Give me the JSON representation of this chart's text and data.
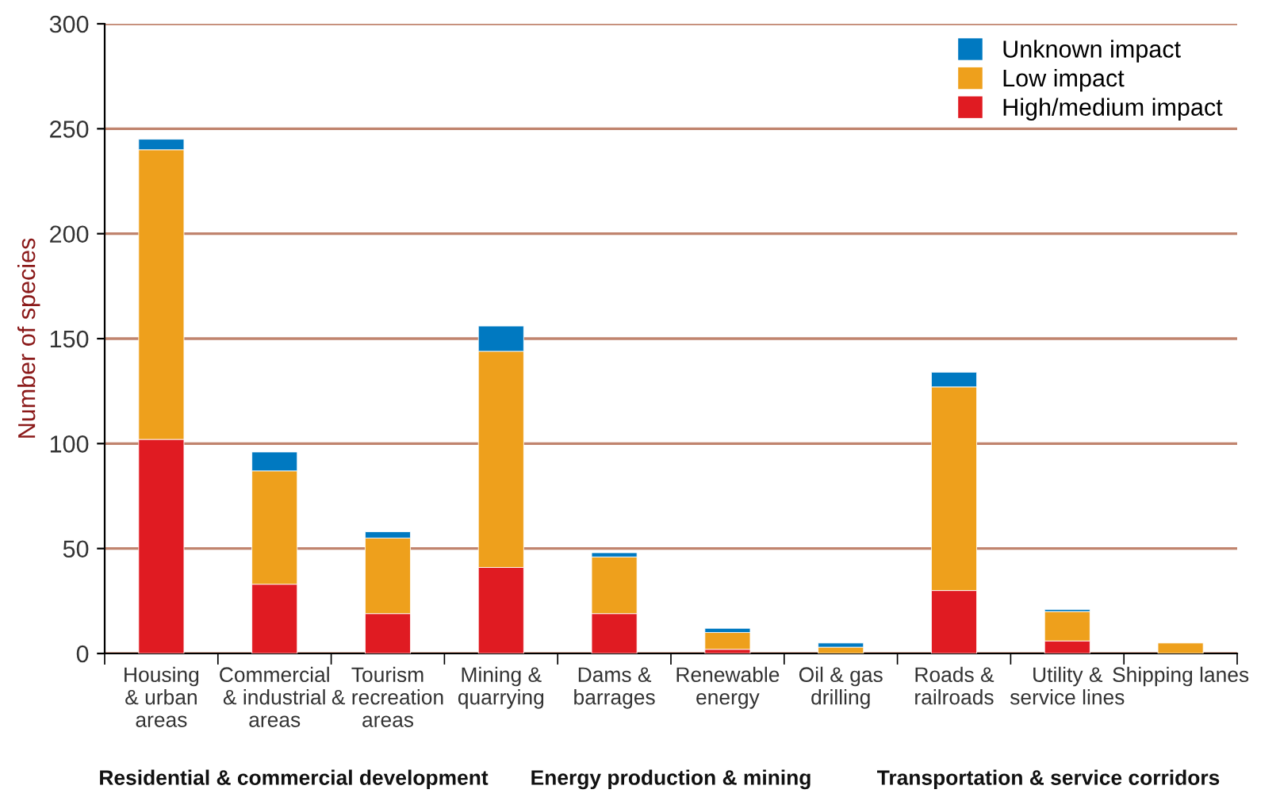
{
  "chart_data": {
    "type": "bar",
    "stacked": true,
    "ylabel": "Number of species",
    "categories": [
      "Housing\n& urban\nareas",
      "Commercial\n& industrial\nareas",
      "Tourism\n& recreation\nareas",
      "Mining &\nquarrying",
      "Dams &\nbarrages",
      "Renewable\nenergy",
      "Oil & gas\ndrilling",
      "Roads &\nrailroads",
      "Utility &\nservice lines",
      "Shipping lanes"
    ],
    "series": [
      {
        "name": "High/medium impact",
        "color": "#e01b22",
        "values": [
          102,
          33,
          19,
          41,
          19,
          2,
          0,
          30,
          6,
          0
        ]
      },
      {
        "name": "Low impact",
        "color": "#eea01c",
        "values": [
          138,
          54,
          36,
          103,
          27,
          8,
          3,
          97,
          14,
          5
        ]
      },
      {
        "name": "Unknown impact",
        "color": "#0079c1",
        "values": [
          5,
          9,
          3,
          12,
          2,
          2,
          2,
          7,
          1,
          0
        ]
      }
    ],
    "ylim": [
      0,
      300
    ],
    "yticks": [
      0,
      50,
      100,
      150,
      200,
      250,
      300
    ],
    "grid": "y",
    "legend": "top right",
    "annotations": [
      "Residential & commercial development",
      "Energy production & mining",
      "Transportation & service corridors"
    ]
  }
}
